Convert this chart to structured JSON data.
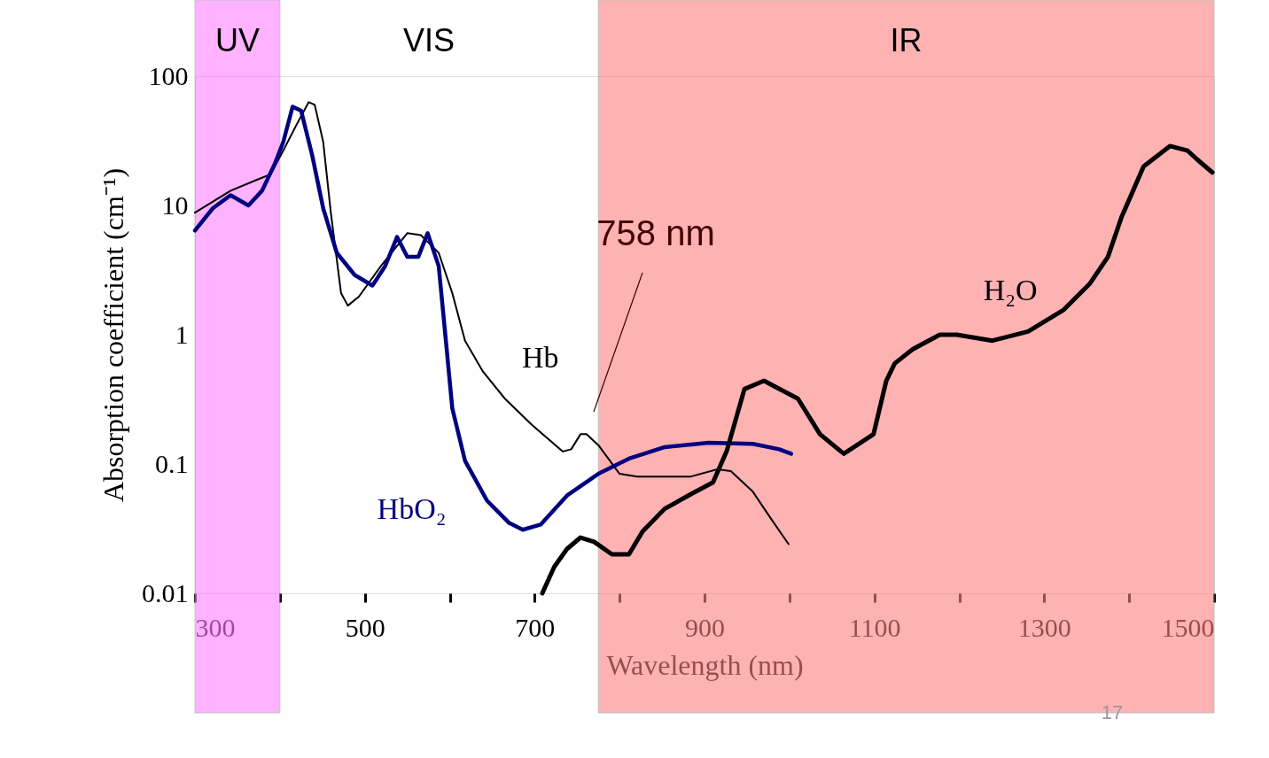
{
  "chart_data": {
    "type": "line",
    "xlabel": "Wavelength (nm)",
    "ylabel": "Absorption coefficient (cm⁻¹)",
    "log": "y",
    "xlim": [
      300,
      1500
    ],
    "xticks": [
      300,
      {
        "value": 400,
        "label": null
      },
      500,
      {
        "value": 600,
        "label": null
      },
      700,
      {
        "value": 800,
        "label": null
      },
      900,
      {
        "value": 1000,
        "label": null
      },
      1100,
      {
        "value": 1200,
        "label": null
      },
      1300,
      {
        "value": 1400,
        "label": null
      },
      1500
    ],
    "ylim": [
      0.01,
      100
    ],
    "yticks": [
      0.01,
      0.1,
      1,
      10,
      100
    ],
    "grid": false,
    "legend": false,
    "line_style": "solid",
    "marker": "none",
    "series": [
      {
        "name": "Hb",
        "color": "#000000",
        "x": [
          300,
          342,
          373,
          389,
          404,
          420,
          434,
          441,
          451,
          460,
          472,
          480,
          493,
          519,
          550,
          566,
          587,
          603,
          618,
          639,
          665,
          697,
          733,
          743,
          754,
          761,
          775,
          800,
          821,
          884,
          915,
          931,
          957,
          978,
          999
        ],
        "values": [
          8.8,
          13,
          15.8,
          17.4,
          26.6,
          42.6,
          63,
          60,
          31,
          8.8,
          2.1,
          1.68,
          1.97,
          3.4,
          6.1,
          5.9,
          4.3,
          2.1,
          0.9,
          0.52,
          0.32,
          0.2,
          0.125,
          0.13,
          0.17,
          0.17,
          0.14,
          0.084,
          0.08,
          0.08,
          0.091,
          0.088,
          0.061,
          0.038,
          0.024
        ]
      },
      {
        "name": "HbO₂",
        "color": "#000080",
        "x": [
          300,
          321,
          342,
          363,
          379,
          394,
          404,
          415,
          425,
          438,
          451,
          467,
          488,
          509,
          524,
          538,
          550,
          563,
          574,
          587,
          595,
          603,
          618,
          644,
          670,
          686,
          707,
          738,
          775,
          811,
          853,
          905,
          957,
          988,
          1002
        ],
        "values": [
          6.4,
          9.5,
          12,
          10,
          13,
          21,
          31,
          58,
          54,
          24.5,
          9.5,
          4.3,
          2.9,
          2.4,
          3.4,
          5.7,
          4.0,
          4.0,
          6.1,
          3.4,
          0.97,
          0.27,
          0.106,
          0.052,
          0.035,
          0.031,
          0.034,
          0.057,
          0.084,
          0.11,
          0.135,
          0.146,
          0.143,
          0.13,
          0.12
        ]
      },
      {
        "name": "H₂O",
        "color": "#000000",
        "x": [
          709,
          723,
          738,
          754,
          770,
          791,
          811,
          827,
          853,
          885,
          910,
          926,
          947,
          970,
          1010,
          1036,
          1064,
          1099,
          1114,
          1124,
          1145,
          1177,
          1197,
          1239,
          1281,
          1323,
          1354,
          1375,
          1391,
          1417,
          1448,
          1469,
          1480,
          1498
        ],
        "values": [
          0.01,
          0.016,
          0.022,
          0.027,
          0.025,
          0.02,
          0.02,
          0.03,
          0.045,
          0.059,
          0.072,
          0.125,
          0.38,
          0.44,
          0.32,
          0.17,
          0.12,
          0.17,
          0.44,
          0.6,
          0.77,
          1.0,
          1.0,
          0.9,
          1.06,
          1.56,
          2.5,
          4.0,
          8.1,
          20,
          28.8,
          26.5,
          22.7,
          18
        ]
      }
    ],
    "bands": [
      {
        "axis": "x",
        "from": 300,
        "to": 400,
        "label": "UV",
        "color": "#ff80ff"
      },
      {
        "axis": "x",
        "from": 775,
        "to": 1500,
        "label": "IR",
        "color": "#ff7f7f"
      }
    ],
    "annotations": [
      "758 nm",
      "VIS",
      "17"
    ]
  }
}
